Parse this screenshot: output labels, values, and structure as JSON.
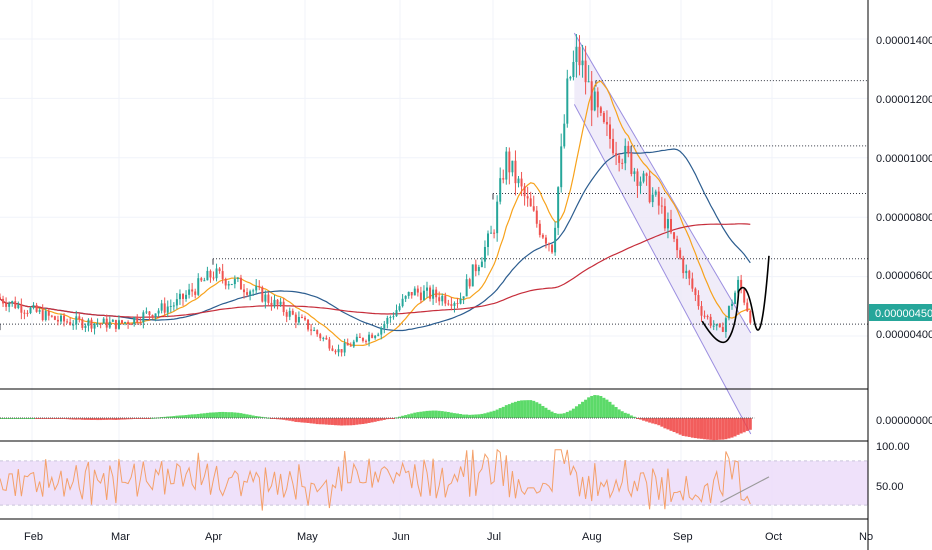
{
  "chart_data": {
    "type": "candlestick",
    "price_axis": {
      "ticks": [
        "0.00001400",
        "0.00001200",
        "0.00001000",
        "0.00000800",
        "0.00000600",
        "0.00000400"
      ],
      "tick_values": [
        1.4e-05,
        1.2e-05,
        1e-05,
        8e-06,
        6e-06,
        4e-06
      ],
      "current_price_label": "0.00000450",
      "current_price": 4.5e-06
    },
    "macd_axis": {
      "ticks": [
        "0.00000000"
      ]
    },
    "rsi_axis": {
      "ticks": [
        "100.00",
        "50.00"
      ],
      "band_range": [
        30,
        70
      ]
    },
    "time_axis": {
      "labels": [
        "Feb",
        "Mar",
        "Apr",
        "May",
        "Jun",
        "Jul",
        "Aug",
        "Sep",
        "Oct",
        "No"
      ]
    },
    "ohlc_checkpoints": [
      {
        "date": "Jan 20",
        "close": 5.3e-06
      },
      {
        "date": "Feb 10",
        "close": 4.5e-06
      },
      {
        "date": "Mar 01",
        "close": 4.4e-06
      },
      {
        "date": "Mar 20",
        "close": 5.1e-06
      },
      {
        "date": "Apr 01",
        "close": 6.1e-06
      },
      {
        "date": "Apr 15",
        "close": 5.5e-06
      },
      {
        "date": "May 01",
        "close": 4.4e-06
      },
      {
        "date": "May 12",
        "close": 3.5e-06
      },
      {
        "date": "May 25",
        "close": 4.2e-06
      },
      {
        "date": "Jun 05",
        "close": 5.5e-06
      },
      {
        "date": "Jun 20",
        "close": 5.2e-06
      },
      {
        "date": "Jul 01",
        "close": 7.5e-06
      },
      {
        "date": "Jul 05",
        "close": 1e-05
      },
      {
        "date": "Jul 15",
        "close": 7.8e-06
      },
      {
        "date": "Jul 20",
        "close": 7e-06
      },
      {
        "date": "Jul 25",
        "close": 1.25e-05
      },
      {
        "date": "Jul 28",
        "close": 1.35e-05
      },
      {
        "date": "Aug 05",
        "close": 1.1e-05
      },
      {
        "date": "Aug 15",
        "close": 9.8e-06
      },
      {
        "date": "Aug 25",
        "close": 8.3e-06
      },
      {
        "date": "Sep 01",
        "close": 6.5e-06
      },
      {
        "date": "Sep 08",
        "close": 4.8e-06
      },
      {
        "date": "Sep 14",
        "close": 4.1e-06
      },
      {
        "date": "Sep 20",
        "close": 5.8e-06
      },
      {
        "date": "Sep 24",
        "close": 4.6e-06
      }
    ],
    "moving_averages": [
      {
        "color": "#f7a21b"
      },
      {
        "color": "#2c5d8f"
      },
      {
        "color": "#c62d3a"
      }
    ],
    "horizontal_levels": [
      1.26e-05,
      1.04e-05,
      8.8e-06,
      6.6e-06,
      4.4e-06
    ],
    "projection": {
      "color": "#000000"
    },
    "colors": {
      "up": "#26a69a",
      "down": "#ef5350",
      "macd_up": "#3fd44f",
      "macd_down": "#f0413f",
      "rsi_line": "#f4a06a",
      "rsi_band": "#ecdcf9",
      "channel_fill": "#ece7f7",
      "channel_border": "#9b8ee0",
      "price_tag": "#26a69a"
    }
  }
}
